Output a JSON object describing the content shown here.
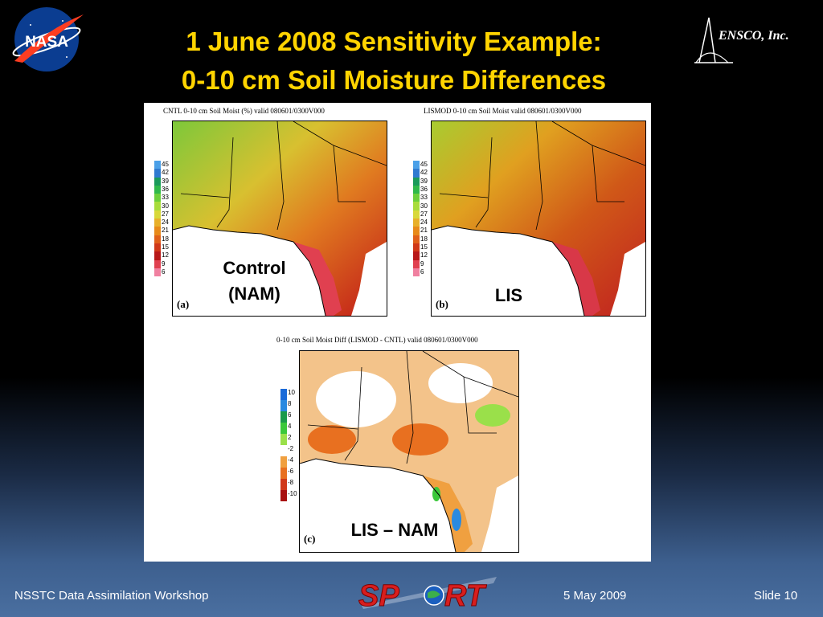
{
  "slide": {
    "title_line1": "1 June 2008 Sensitivity Example:",
    "title_line2": "0-10 cm Soil Moisture Differences",
    "logos": {
      "left": "NASA",
      "right": "ENSCO, Inc.",
      "footer": "SPoRT"
    }
  },
  "panels": {
    "a": {
      "header": "CNTL 0-10 cm Soil Moist (%) valid 080601/0300V000",
      "letter": "(a)",
      "label_line1": "Control",
      "label_line2": "(NAM)",
      "legend_ticks": [
        "45",
        "42",
        "39",
        "36",
        "33",
        "30",
        "27",
        "24",
        "21",
        "18",
        "15",
        "12",
        "9",
        "6"
      ]
    },
    "b": {
      "header": "LISMOD 0-10 cm Soil Moist valid 080601/0300V000",
      "letter": "(b)",
      "label": "LIS",
      "legend_ticks": [
        "45",
        "42",
        "39",
        "36",
        "33",
        "30",
        "27",
        "24",
        "21",
        "18",
        "15",
        "12",
        "9",
        "6"
      ]
    },
    "c": {
      "header": "0-10 cm Soil Moist Diff (LISMOD - CNTL) valid 080601/0300V000",
      "letter": "(c)",
      "label": "LIS – NAM",
      "legend_ticks": [
        "10",
        "8",
        "6",
        "4",
        "2",
        "-2",
        "-4",
        "-6",
        "-8",
        "-10"
      ]
    }
  },
  "colors": {
    "title": "#ffd400",
    "moisture_scale": [
      "#4aa0e8",
      "#2f7ad0",
      "#1a9a5a",
      "#2fb84a",
      "#6ccf3a",
      "#a8dc3a",
      "#d8d83a",
      "#e8b02a",
      "#e88a1a",
      "#e0601a",
      "#d03818",
      "#b81818",
      "#e04050",
      "#f080a0"
    ],
    "diff_scale": [
      "#1a6ad8",
      "#2a8ae0",
      "#1a9a4a",
      "#3ac83a",
      "#9ae04a",
      "#ffffff",
      "#f0a040",
      "#e87020",
      "#d03818",
      "#a81010"
    ]
  },
  "footer": {
    "left": "NSSTC Data Assimilation Workshop",
    "date": "5 May 2009",
    "slide_number": "Slide 10"
  }
}
